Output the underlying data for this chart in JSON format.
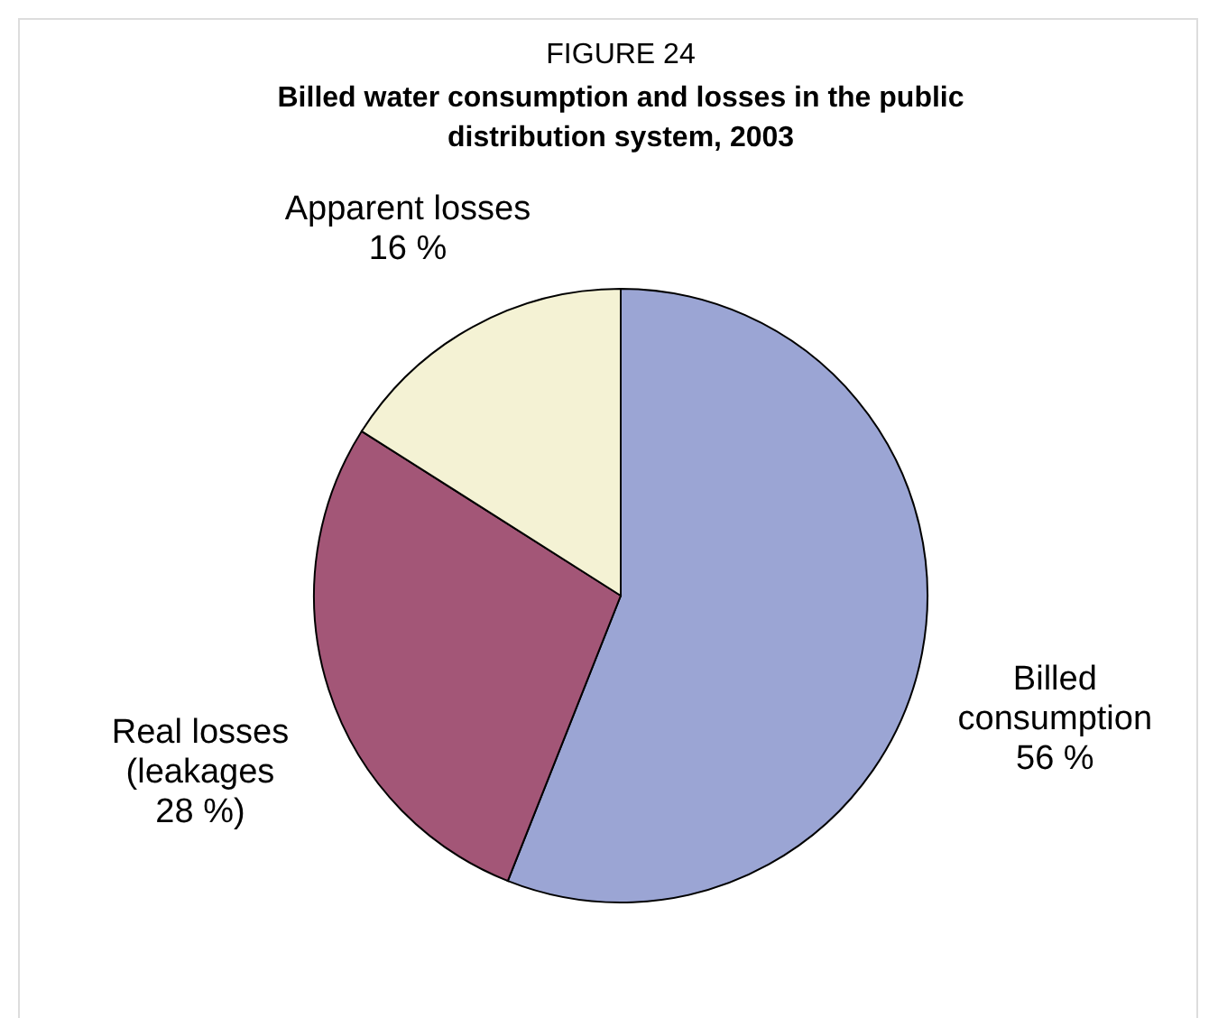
{
  "chart_data": {
    "type": "pie",
    "title": "FIGURE 24",
    "subtitle": "Billed water consumption and losses in the public\ndistribution system, 2003",
    "categories": [
      "Billed\nconsumption",
      "Real losses\n(leakages",
      "Apparent losses"
    ],
    "values": [
      56,
      28,
      16
    ],
    "value_labels": [
      "56 %",
      "28 %)",
      "16 %"
    ],
    "colors": [
      "#9ba5d4",
      "#a35677",
      "#f4f2d4"
    ],
    "legend": false
  }
}
